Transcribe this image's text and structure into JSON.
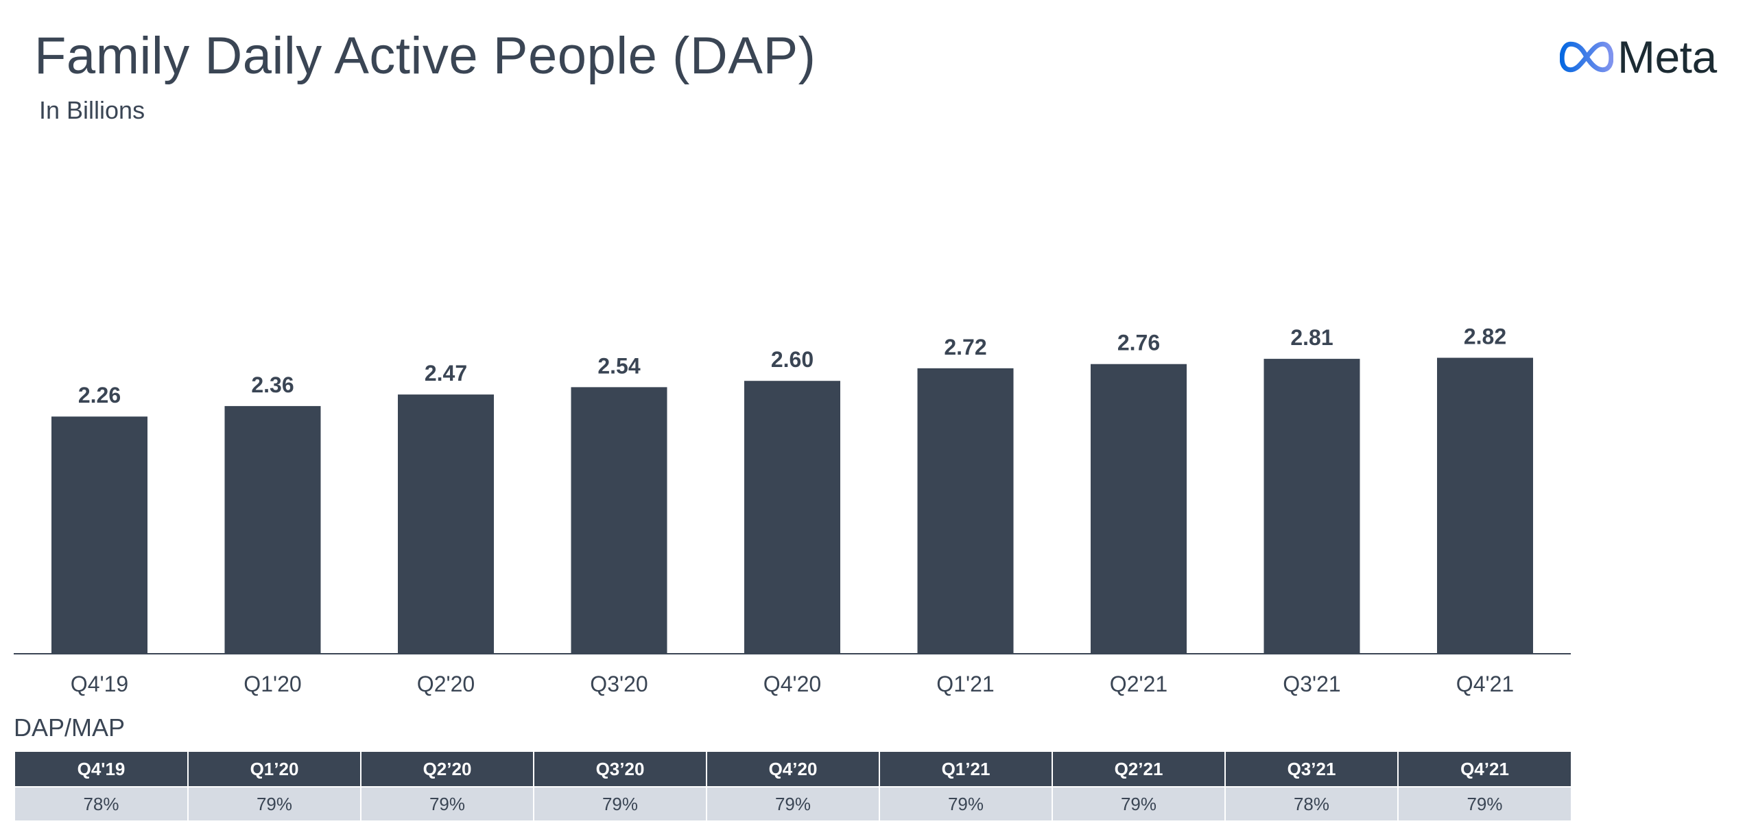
{
  "header": {
    "title": "Family Daily Active People (DAP)",
    "subtitle": "In Billions",
    "logo_text": "Meta"
  },
  "colors": {
    "bar": "#3a4554",
    "text": "#3a4554",
    "table_header_bg": "#3a4554",
    "table_row_bg": "#d6dbe3",
    "logo_gradient_start": "#0668e1",
    "logo_gradient_end": "#7f93ee"
  },
  "chart_data": {
    "type": "bar",
    "title": "Family Daily Active People (DAP)",
    "subtitle": "In Billions",
    "categories": [
      "Q4'19",
      "Q1'20",
      "Q2'20",
      "Q3'20",
      "Q4'20",
      "Q1'21",
      "Q2'21",
      "Q3'21",
      "Q4'21"
    ],
    "values": [
      2.26,
      2.36,
      2.47,
      2.54,
      2.6,
      2.72,
      2.76,
      2.81,
      2.82
    ],
    "value_labels": [
      "2.26",
      "2.36",
      "2.47",
      "2.54",
      "2.60",
      "2.72",
      "2.76",
      "2.81",
      "2.82"
    ],
    "ylim": [
      0,
      3.0
    ],
    "grid": false,
    "legend": "none"
  },
  "ratio_table": {
    "title": "DAP/MAP",
    "headers": [
      "Q4'19",
      "Q1’20",
      "Q2’20",
      "Q3’20",
      "Q4’20",
      "Q1’21",
      "Q2’21",
      "Q3’21",
      "Q4’21"
    ],
    "values": [
      "78%",
      "79%",
      "79%",
      "79%",
      "79%",
      "79%",
      "79%",
      "78%",
      "79%"
    ]
  }
}
